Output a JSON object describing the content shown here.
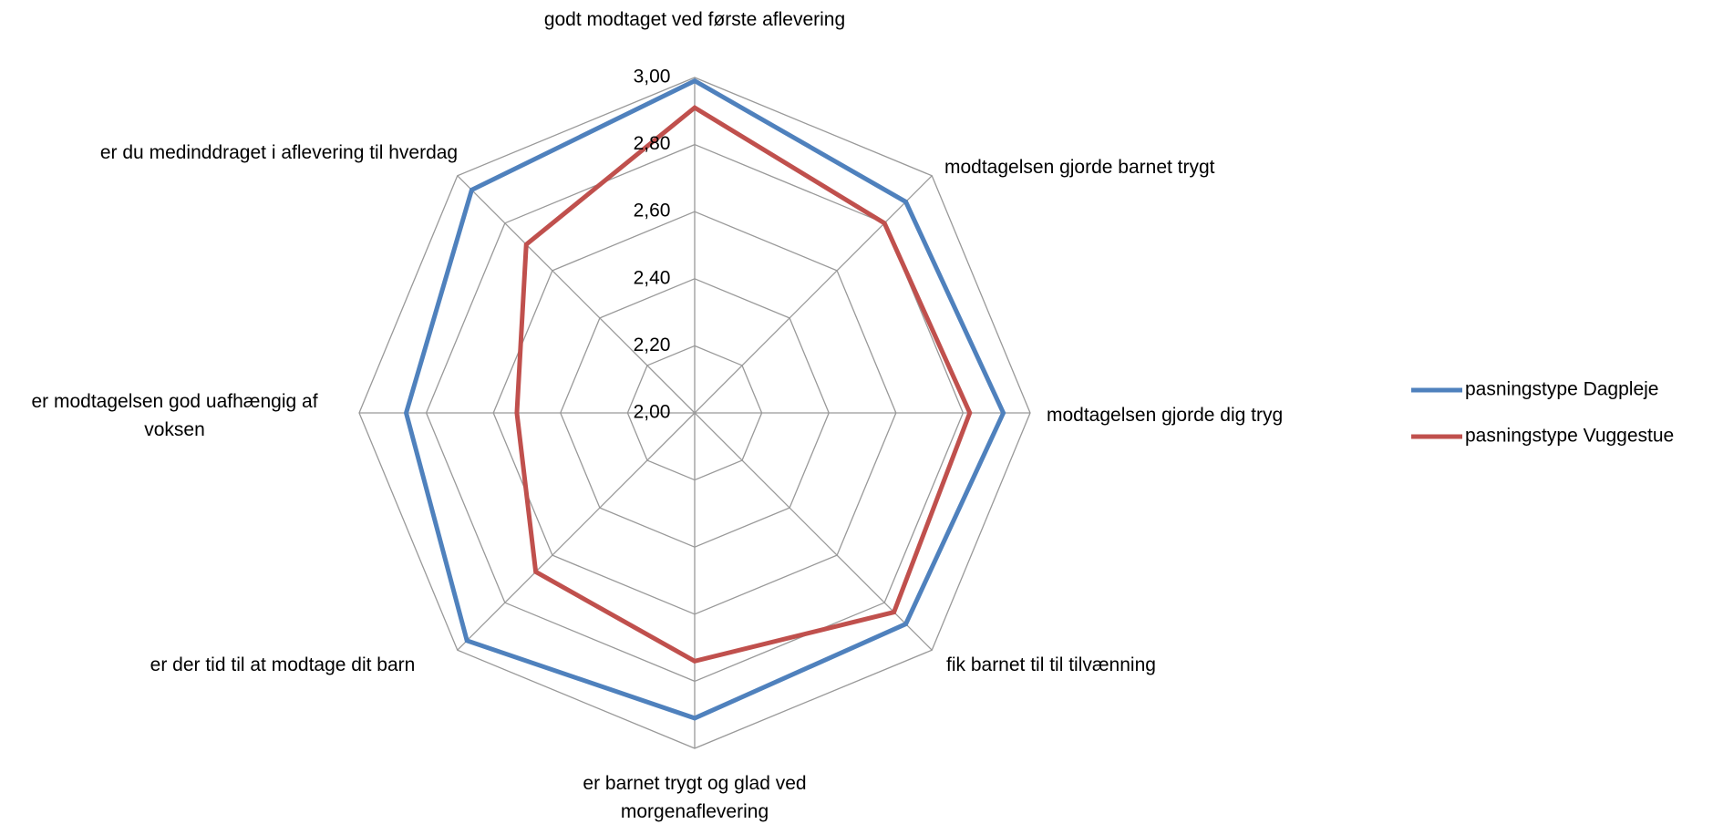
{
  "chart_data": {
    "type": "radar",
    "categories": [
      "godt modtaget ved første aflevering",
      "modtagelsen gjorde barnet trygt",
      "modtagelsen gjorde dig tryg",
      "fik barnet til til tilvænning",
      "er barnet trygt og glad ved morgenaflevering",
      "er der tid til at modtage dit barn",
      "er modtagelsen god uafhængig af voksen",
      "er du medinddraget i aflevering til hverdag"
    ],
    "series": [
      {
        "name": "pasningstype Dagpleje",
        "color": "#4f81bd",
        "values": [
          2.99,
          2.89,
          2.92,
          2.89,
          2.91,
          2.96,
          2.86,
          2.94
        ]
      },
      {
        "name": "pasningstype Vuggestue",
        "color": "#c0504d",
        "values": [
          2.91,
          2.8,
          2.82,
          2.84,
          2.74,
          2.67,
          2.53,
          2.71
        ]
      }
    ],
    "ylim": [
      2.0,
      3.0
    ],
    "yticks": [
      {
        "value": 2.0,
        "label": "2,00"
      },
      {
        "value": 2.2,
        "label": "2,20"
      },
      {
        "value": 2.4,
        "label": "2,40"
      },
      {
        "value": 2.6,
        "label": "2,60"
      },
      {
        "value": 2.8,
        "label": "2,80"
      },
      {
        "value": 3.0,
        "label": "3,00"
      }
    ],
    "grid": true,
    "legend": "right"
  }
}
